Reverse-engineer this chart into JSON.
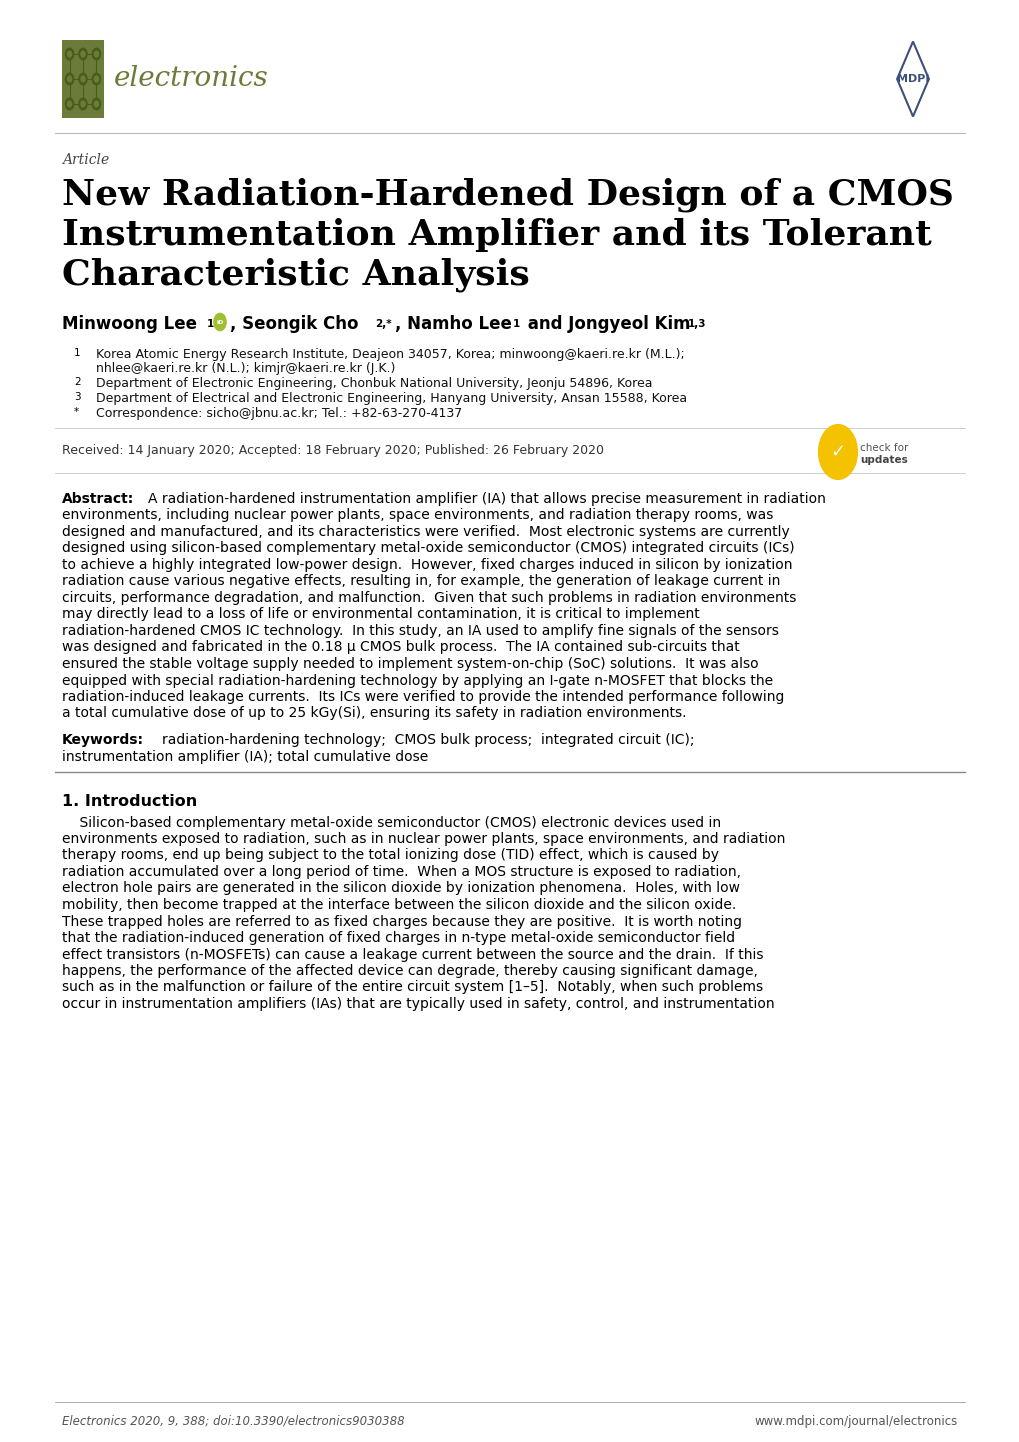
{
  "background_color": "#ffffff",
  "page_width": 10.2,
  "page_height": 14.42,
  "journal_color": "#6b7c3a",
  "mdpi_color": "#3d4f7c",
  "article_label": "Article",
  "title_line1": "New Radiation-Hardened Design of a CMOS",
  "title_line2": "Instrumentation Amplifier and its Tolerant",
  "title_line3": "Characteristic Analysis",
  "received": "Received: 14 January 2020; Accepted: 18 February 2020; Published: 26 February 2020",
  "footer_left": "Electronics 2020, 9, 388; doi:10.3390/electronics9030388",
  "footer_right": "www.mdpi.com/journal/electronics",
  "mu": "μ",
  "endash": "–",
  "abstract_lines": [
    "A radiation-hardened instrumentation amplifier (IA) that allows precise measurement in radiation",
    "environments, including nuclear power plants, space environments, and radiation therapy rooms, was",
    "designed and manufactured, and its characteristics were verified.  Most electronic systems are currently",
    "designed using silicon-based complementary metal-oxide semiconductor (CMOS) integrated circuits (ICs)",
    "to achieve a highly integrated low-power design.  However, fixed charges induced in silicon by ionization",
    "radiation cause various negative effects, resulting in, for example, the generation of leakage current in",
    "circuits, performance degradation, and malfunction.  Given that such problems in radiation environments",
    "may directly lead to a loss of life or environmental contamination, it is critical to implement",
    "radiation-hardened CMOS IC technology.  In this study, an IA used to amplify fine signals of the sensors",
    "was designed and fabricated in the 0.18 MU_PLACEHOLDER CMOS bulk process.  The IA contained sub-circuits that",
    "ensured the stable voltage supply needed to implement system-on-chip (SoC) solutions.  It was also",
    "equipped with special radiation-hardening technology by applying an I-gate n-MOSFET that blocks the",
    "radiation-induced leakage currents.  Its ICs were verified to provide the intended performance following",
    "a total cumulative dose of up to 25 kGy(Si), ensuring its safety in radiation environments."
  ],
  "keywords_line1": "radiation-hardening technology;  CMOS bulk process;  integrated circuit (IC);",
  "keywords_line2": "instrumentation amplifier (IA); total cumulative dose",
  "intro_lines": [
    "    Silicon-based complementary metal-oxide semiconductor (CMOS) electronic devices used in",
    "environments exposed to radiation, such as in nuclear power plants, space environments, and radiation",
    "therapy rooms, end up being subject to the total ionizing dose (TID) effect, which is caused by",
    "radiation accumulated over a long period of time.  When a MOS structure is exposed to radiation,",
    "electron hole pairs are generated in the silicon dioxide by ionization phenomena.  Holes, with low",
    "mobility, then become trapped at the interface between the silicon dioxide and the silicon oxide.",
    "These trapped holes are referred to as fixed charges because they are positive.  It is worth noting",
    "that the radiation-induced generation of fixed charges in n-type metal-oxide semiconductor field",
    "effect transistors (n-MOSFETs) can cause a leakage current between the source and the drain.  If this",
    "happens, the performance of the affected device can degrade, thereby causing significant damage,",
    "such as in the malfunction or failure of the entire circuit system [1ENDASH_PLACEHOLDER5].  Notably, when such problems",
    "occur in instrumentation amplifiers (IAs) that are typically used in safety, control, and instrumentation"
  ]
}
